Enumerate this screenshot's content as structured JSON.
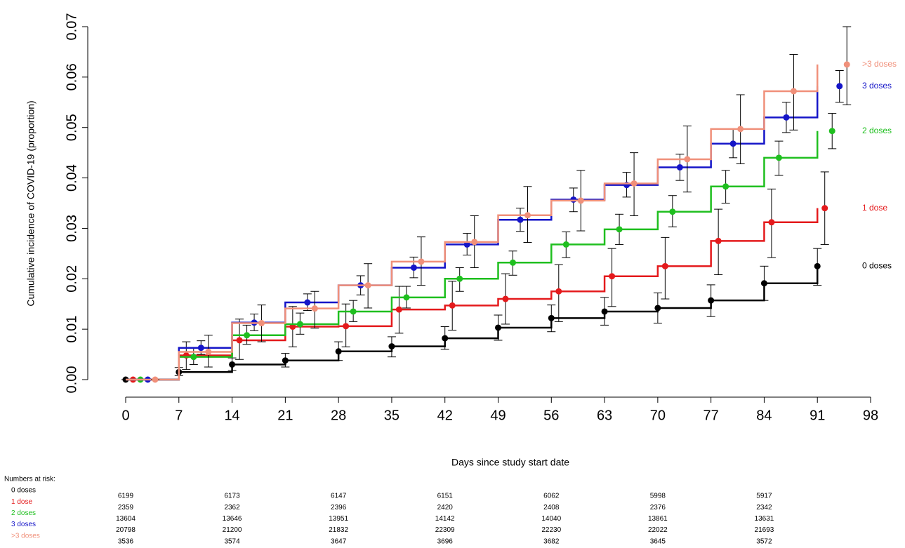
{
  "chart_data": {
    "type": "step",
    "xlabel": "Days since study start date",
    "ylabel": "Cumulative incidence of COVID-19 (proportion)",
    "xlim": [
      0,
      98
    ],
    "xticks": [
      0,
      7,
      14,
      21,
      28,
      35,
      42,
      49,
      56,
      63,
      70,
      77,
      84,
      91,
      98
    ],
    "ylim": [
      0,
      0.07
    ],
    "yticks": [
      {
        "value": 0,
        "label": "0.00"
      },
      {
        "value": 0.01,
        "label": "0.01"
      },
      {
        "value": 0.02,
        "label": "0.02"
      },
      {
        "value": 0.03,
        "label": "0.03"
      },
      {
        "value": 0.04,
        "label": "0.04"
      },
      {
        "value": 0.05,
        "label": "0.05"
      },
      {
        "value": 0.06,
        "label": "0.06"
      },
      {
        "value": 0.07,
        "label": "0.07"
      }
    ],
    "x": [
      0,
      7,
      14,
      21,
      28,
      35,
      42,
      49,
      56,
      63,
      70,
      77,
      84,
      91
    ],
    "series": [
      {
        "name": "0 doses",
        "color": "#000000",
        "values": [
          0,
          0.0015,
          0.003,
          0.0038,
          0.0056,
          0.0066,
          0.0082,
          0.0103,
          0.0122,
          0.0135,
          0.0142,
          0.0157,
          0.0191,
          0.0225
        ],
        "lower": [
          0,
          0.0008,
          0.0018,
          0.0025,
          0.0038,
          0.0045,
          0.006,
          0.0078,
          0.0095,
          0.0108,
          0.0112,
          0.0125,
          0.0157,
          0.0187
        ],
        "upper": [
          0,
          0.0024,
          0.0043,
          0.0052,
          0.0075,
          0.0085,
          0.0105,
          0.0128,
          0.0148,
          0.0163,
          0.0172,
          0.0188,
          0.0225,
          0.026
        ]
      },
      {
        "name": "1 dose",
        "color": "#e41a1c",
        "values": [
          0,
          0.0048,
          0.0078,
          0.0105,
          0.0106,
          0.0139,
          0.0147,
          0.016,
          0.0175,
          0.0205,
          0.0225,
          0.0275,
          0.0312,
          0.034
        ],
        "lower": [
          0,
          0.002,
          0.004,
          0.0065,
          0.0065,
          0.0092,
          0.0098,
          0.011,
          0.0115,
          0.0145,
          0.016,
          0.0208,
          0.0242,
          0.0268
        ],
        "upper": [
          0,
          0.0075,
          0.012,
          0.0145,
          0.015,
          0.0185,
          0.0195,
          0.021,
          0.0228,
          0.026,
          0.0282,
          0.0338,
          0.0378,
          0.0412
        ]
      },
      {
        "name": "2 doses",
        "color": "#1fbf1f",
        "values": [
          0,
          0.0045,
          0.0088,
          0.011,
          0.0135,
          0.0163,
          0.02,
          0.0232,
          0.0268,
          0.0298,
          0.0333,
          0.0383,
          0.044,
          0.0493
        ],
        "lower": [
          0,
          0.003,
          0.007,
          0.009,
          0.0115,
          0.0142,
          0.0175,
          0.0207,
          0.0242,
          0.0268,
          0.0303,
          0.035,
          0.0405,
          0.0458
        ],
        "upper": [
          0,
          0.0062,
          0.0108,
          0.0132,
          0.0157,
          0.0185,
          0.0222,
          0.0255,
          0.0293,
          0.0328,
          0.0365,
          0.0415,
          0.0473,
          0.0528
        ]
      },
      {
        "name": "3 doses",
        "color": "#1515c8",
        "values": [
          0,
          0.0063,
          0.0113,
          0.0153,
          0.0187,
          0.0222,
          0.0268,
          0.0317,
          0.0357,
          0.0386,
          0.0421,
          0.0468,
          0.052,
          0.0582
        ],
        "lower": [
          0,
          0.005,
          0.0097,
          0.0137,
          0.0168,
          0.0202,
          0.0247,
          0.0294,
          0.0333,
          0.0362,
          0.0395,
          0.044,
          0.049,
          0.055
        ],
        "upper": [
          0,
          0.0077,
          0.013,
          0.017,
          0.0206,
          0.0243,
          0.029,
          0.034,
          0.038,
          0.0411,
          0.0447,
          0.0497,
          0.055,
          0.0613
        ]
      },
      {
        "name": ">3 doses",
        "color": "#f0907a",
        "values": [
          0,
          0.0055,
          0.0112,
          0.0141,
          0.0187,
          0.0234,
          0.0273,
          0.0326,
          0.0355,
          0.0389,
          0.0437,
          0.0497,
          0.0572,
          0.0625
        ],
        "lower": [
          0,
          0.0025,
          0.0075,
          0.0102,
          0.0142,
          0.0187,
          0.0222,
          0.0272,
          0.0295,
          0.0325,
          0.0372,
          0.0428,
          0.0495,
          0.0545
        ],
        "upper": [
          0,
          0.0088,
          0.0148,
          0.0175,
          0.023,
          0.0283,
          0.0325,
          0.0383,
          0.0415,
          0.045,
          0.0503,
          0.0565,
          0.0645,
          0.07
        ]
      }
    ],
    "risk_table": {
      "title": "Numbers at risk:",
      "x": [
        0,
        14,
        28,
        42,
        56,
        70,
        84
      ],
      "rows": [
        [
          6199,
          6173,
          6147,
          6151,
          6062,
          5998,
          5917
        ],
        [
          2359,
          2362,
          2396,
          2420,
          2408,
          2376,
          2342
        ],
        [
          13604,
          13646,
          13951,
          14142,
          14040,
          13861,
          13631
        ],
        [
          20798,
          21200,
          21832,
          22309,
          22230,
          22022,
          21693
        ],
        [
          3536,
          3574,
          3647,
          3696,
          3682,
          3645,
          3572
        ]
      ]
    }
  }
}
